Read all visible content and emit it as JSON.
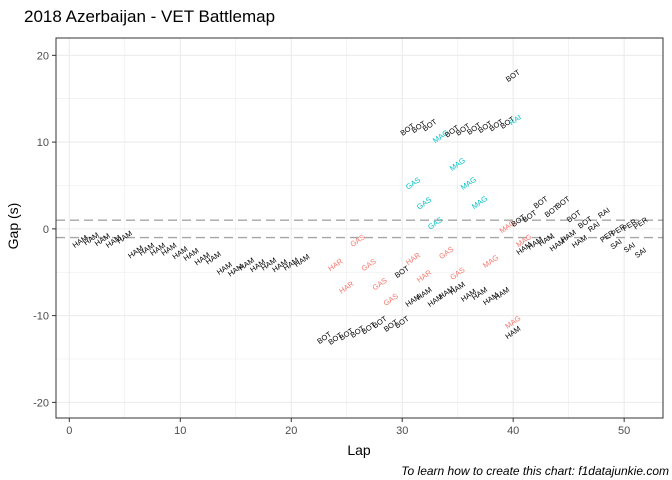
{
  "chart_data": {
    "type": "scatter",
    "title": "2018 Azerbaijan - VET Battlemap",
    "xlabel": "Lap",
    "ylabel": "Gap (s)",
    "caption": "To learn how to create this chart: f1datajunkie.com",
    "xlim": [
      -1.2,
      53.5
    ],
    "ylim": [
      -21.8,
      22
    ],
    "x_ticks": [
      0,
      10,
      20,
      30,
      40,
      50
    ],
    "y_ticks": [
      -20,
      -10,
      0,
      10,
      20
    ],
    "grid": true,
    "legend": "none",
    "reference_lines": [
      1,
      -1
    ],
    "colors": {
      "black": "#000000",
      "red": "#F8766D",
      "cyan": "#00BFC4",
      "panel_border": "#333333",
      "grid": "#ebebeb",
      "refline": "#a6a6a6"
    },
    "labels": [
      {
        "lap": 1,
        "gap": -1.5,
        "text": "HAM",
        "color": "black"
      },
      {
        "lap": 2,
        "gap": -1.2,
        "text": "HAM",
        "color": "black"
      },
      {
        "lap": 3,
        "gap": -1.3,
        "text": "HAM",
        "color": "black"
      },
      {
        "lap": 4,
        "gap": -1.5,
        "text": "HAM",
        "color": "black"
      },
      {
        "lap": 5,
        "gap": -1.0,
        "text": "HAM",
        "color": "black"
      },
      {
        "lap": 6,
        "gap": -2.7,
        "text": "HAM",
        "color": "black"
      },
      {
        "lap": 7,
        "gap": -2.4,
        "text": "HAM",
        "color": "black"
      },
      {
        "lap": 8,
        "gap": -2.4,
        "text": "HAM",
        "color": "black"
      },
      {
        "lap": 9,
        "gap": -2.4,
        "text": "HAM",
        "color": "black"
      },
      {
        "lap": 10,
        "gap": -2.8,
        "text": "HAM",
        "color": "black"
      },
      {
        "lap": 11,
        "gap": -3.0,
        "text": "HAM",
        "color": "black"
      },
      {
        "lap": 12,
        "gap": -3.5,
        "text": "HAM",
        "color": "black"
      },
      {
        "lap": 13,
        "gap": -3.4,
        "text": "HAM",
        "color": "black"
      },
      {
        "lap": 14,
        "gap": -4.6,
        "text": "HAM",
        "color": "black"
      },
      {
        "lap": 15,
        "gap": -4.8,
        "text": "HAM",
        "color": "black"
      },
      {
        "lap": 16,
        "gap": -4.1,
        "text": "HAM",
        "color": "black"
      },
      {
        "lap": 17,
        "gap": -4.3,
        "text": "HAM",
        "color": "black"
      },
      {
        "lap": 18,
        "gap": -4.1,
        "text": "HAM",
        "color": "black"
      },
      {
        "lap": 19,
        "gap": -4.3,
        "text": "HAM",
        "color": "black"
      },
      {
        "lap": 20,
        "gap": -4.1,
        "text": "HAM",
        "color": "black"
      },
      {
        "lap": 21,
        "gap": -3.7,
        "text": "HAM",
        "color": "black"
      },
      {
        "lap": 23,
        "gap": -12.6,
        "text": "BOT",
        "color": "black"
      },
      {
        "lap": 24,
        "gap": -12.7,
        "text": "BOT",
        "color": "black"
      },
      {
        "lap": 25,
        "gap": -12.2,
        "text": "BOT",
        "color": "black"
      },
      {
        "lap": 26,
        "gap": -11.9,
        "text": "BOT",
        "color": "black"
      },
      {
        "lap": 27,
        "gap": -11.5,
        "text": "BOT",
        "color": "black"
      },
      {
        "lap": 28,
        "gap": -10.8,
        "text": "BOT",
        "color": "black"
      },
      {
        "lap": 29,
        "gap": -11.2,
        "text": "BOT",
        "color": "black"
      },
      {
        "lap": 30,
        "gap": -10.8,
        "text": "BOT",
        "color": "black"
      },
      {
        "lap": 24,
        "gap": -4.2,
        "text": "HAR",
        "color": "red"
      },
      {
        "lap": 25,
        "gap": -6.8,
        "text": "HAR",
        "color": "red"
      },
      {
        "lap": 26,
        "gap": -1.4,
        "text": "GAS",
        "color": "red"
      },
      {
        "lap": 27,
        "gap": -4.2,
        "text": "GAS",
        "color": "red"
      },
      {
        "lap": 28,
        "gap": -6.4,
        "text": "GAS",
        "color": "red"
      },
      {
        "lap": 29,
        "gap": -8.2,
        "text": "GAS",
        "color": "red"
      },
      {
        "lap": 30,
        "gap": -5.0,
        "text": "BOT",
        "color": "black"
      },
      {
        "lap": 31,
        "gap": -3.5,
        "text": "HAR",
        "color": "red"
      },
      {
        "lap": 32,
        "gap": -5.5,
        "text": "HAR",
        "color": "red"
      },
      {
        "lap": 34,
        "gap": -2.8,
        "text": "GAS",
        "color": "red"
      },
      {
        "lap": 35,
        "gap": -5.2,
        "text": "GAS",
        "color": "red"
      },
      {
        "lap": 31,
        "gap": -8.3,
        "text": "HAM",
        "color": "black"
      },
      {
        "lap": 32,
        "gap": -7.5,
        "text": "HAM",
        "color": "black"
      },
      {
        "lap": 33,
        "gap": -8.3,
        "text": "HAM",
        "color": "black"
      },
      {
        "lap": 34,
        "gap": -7.4,
        "text": "HAM",
        "color": "black"
      },
      {
        "lap": 35,
        "gap": -6.9,
        "text": "HAM",
        "color": "black"
      },
      {
        "lap": 36,
        "gap": -7.7,
        "text": "HAM",
        "color": "black"
      },
      {
        "lap": 37,
        "gap": -7.5,
        "text": "HAM",
        "color": "black"
      },
      {
        "lap": 38,
        "gap": -8.1,
        "text": "HAM",
        "color": "black"
      },
      {
        "lap": 39,
        "gap": -7.5,
        "text": "HAM",
        "color": "black"
      },
      {
        "lap": 38,
        "gap": -3.8,
        "text": "MAG",
        "color": "red"
      },
      {
        "lap": 39.5,
        "gap": 0.2,
        "text": "MAG",
        "color": "red"
      },
      {
        "lap": 40,
        "gap": -10.8,
        "text": "MAG",
        "color": "red"
      },
      {
        "lap": 40,
        "gap": -12.0,
        "text": "HAM",
        "color": "black"
      },
      {
        "lap": 30.5,
        "gap": 11.4,
        "text": "BOT",
        "color": "black"
      },
      {
        "lap": 31.5,
        "gap": 11.7,
        "text": "BOT",
        "color": "black"
      },
      {
        "lap": 32.5,
        "gap": 11.9,
        "text": "BOT",
        "color": "black"
      },
      {
        "lap": 33.5,
        "gap": 10.6,
        "text": "MAG",
        "color": "cyan"
      },
      {
        "lap": 34.5,
        "gap": 11.2,
        "text": "BOT",
        "color": "black"
      },
      {
        "lap": 35.5,
        "gap": 11.4,
        "text": "BOT",
        "color": "black"
      },
      {
        "lap": 36.5,
        "gap": 11.5,
        "text": "BOT",
        "color": "black"
      },
      {
        "lap": 37.5,
        "gap": 11.7,
        "text": "BOT",
        "color": "black"
      },
      {
        "lap": 38.5,
        "gap": 11.9,
        "text": "BOT",
        "color": "black"
      },
      {
        "lap": 39.5,
        "gap": 12.2,
        "text": "BOT",
        "color": "black"
      },
      {
        "lap": 40.2,
        "gap": 12.5,
        "text": "RAI",
        "color": "cyan"
      },
      {
        "lap": 40,
        "gap": 17.6,
        "text": "BOT",
        "color": "black"
      },
      {
        "lap": 31,
        "gap": 5.2,
        "text": "GAS",
        "color": "cyan"
      },
      {
        "lap": 32,
        "gap": 2.9,
        "text": "GAS",
        "color": "cyan"
      },
      {
        "lap": 33,
        "gap": 0.6,
        "text": "GAS",
        "color": "cyan"
      },
      {
        "lap": 35,
        "gap": 7.4,
        "text": "MAG",
        "color": "cyan"
      },
      {
        "lap": 36,
        "gap": 5.2,
        "text": "MAG",
        "color": "cyan"
      },
      {
        "lap": 37,
        "gap": 3.0,
        "text": "MAG",
        "color": "cyan"
      },
      {
        "lap": 40.5,
        "gap": 0.9,
        "text": "BOT",
        "color": "black"
      },
      {
        "lap": 41.5,
        "gap": 1.4,
        "text": "BOT",
        "color": "black"
      },
      {
        "lap": 42.5,
        "gap": 3.0,
        "text": "BOT",
        "color": "black"
      },
      {
        "lap": 43.5,
        "gap": 2.0,
        "text": "BOT",
        "color": "black"
      },
      {
        "lap": 44.5,
        "gap": 3.0,
        "text": "BOT",
        "color": "black"
      },
      {
        "lap": 45.5,
        "gap": 1.4,
        "text": "BOT",
        "color": "black"
      },
      {
        "lap": 46.5,
        "gap": 0.7,
        "text": "BOT",
        "color": "black"
      },
      {
        "lap": 41,
        "gap": -2.3,
        "text": "HAM",
        "color": "black"
      },
      {
        "lap": 42,
        "gap": -1.7,
        "text": "HAM",
        "color": "black"
      },
      {
        "lap": 43,
        "gap": -1.3,
        "text": "HAM",
        "color": "black"
      },
      {
        "lap": 44,
        "gap": -1.9,
        "text": "HAM",
        "color": "black"
      },
      {
        "lap": 45,
        "gap": -0.9,
        "text": "HAM",
        "color": "black"
      },
      {
        "lap": 46,
        "gap": -1.5,
        "text": "HAM",
        "color": "black"
      },
      {
        "lap": 41,
        "gap": -1.4,
        "text": "MAG",
        "color": "red"
      },
      {
        "lap": 47.3,
        "gap": 0.2,
        "text": "RAI",
        "color": "black"
      },
      {
        "lap": 48.2,
        "gap": 1.8,
        "text": "RAI",
        "color": "black"
      },
      {
        "lap": 48.5,
        "gap": -0.9,
        "text": "PER",
        "color": "black"
      },
      {
        "lap": 49.5,
        "gap": -0.2,
        "text": "PER",
        "color": "black"
      },
      {
        "lap": 50.5,
        "gap": 0.4,
        "text": "PER",
        "color": "black"
      },
      {
        "lap": 51.5,
        "gap": 0.6,
        "text": "PER",
        "color": "black"
      },
      {
        "lap": 49.3,
        "gap": -1.8,
        "text": "SAI",
        "color": "black"
      },
      {
        "lap": 50.5,
        "gap": -2.2,
        "text": "SAI",
        "color": "black"
      },
      {
        "lap": 51.5,
        "gap": -2.8,
        "text": "SAI",
        "color": "black"
      }
    ]
  }
}
